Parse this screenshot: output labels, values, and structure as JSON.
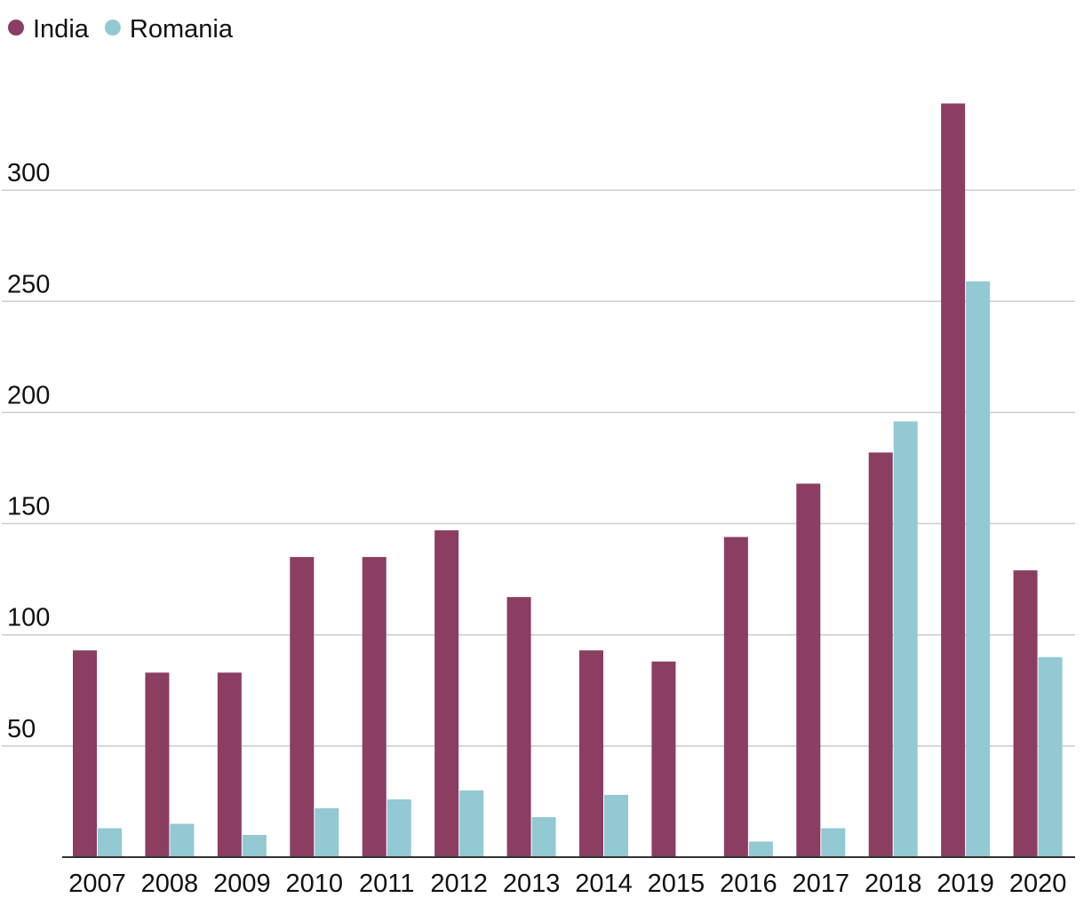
{
  "chart_data": {
    "type": "bar",
    "title": "",
    "xlabel": "",
    "ylabel": "",
    "ylim": [
      0,
      345
    ],
    "yticks": [
      50,
      100,
      150,
      200,
      250,
      300
    ],
    "grid": true,
    "legend_position": "top-left",
    "categories": [
      "2007",
      "2008",
      "2009",
      "2010",
      "2011",
      "2012",
      "2013",
      "2014",
      "2015",
      "2016",
      "2017",
      "2018",
      "2019",
      "2020"
    ],
    "series": [
      {
        "name": "India",
        "color": "#8b3d62",
        "values": [
          93,
          83,
          83,
          135,
          135,
          147,
          117,
          93,
          88,
          144,
          168,
          182,
          339,
          129
        ]
      },
      {
        "name": "Romania",
        "color": "#92c9d3",
        "values": [
          13,
          15,
          10,
          22,
          26,
          30,
          18,
          28,
          0,
          7,
          13,
          196,
          259,
          90
        ]
      }
    ]
  }
}
